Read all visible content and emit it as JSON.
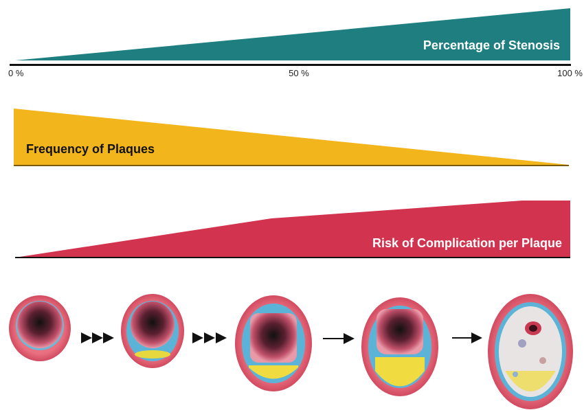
{
  "stenosis": {
    "label": "Percentage of Stenosis",
    "axis": [
      "0 %",
      "50 %",
      "100 %"
    ]
  },
  "frequency": {
    "label": "Frequency of Plaques"
  },
  "risk": {
    "label": "Risk of Complication per Plaque"
  }
}
